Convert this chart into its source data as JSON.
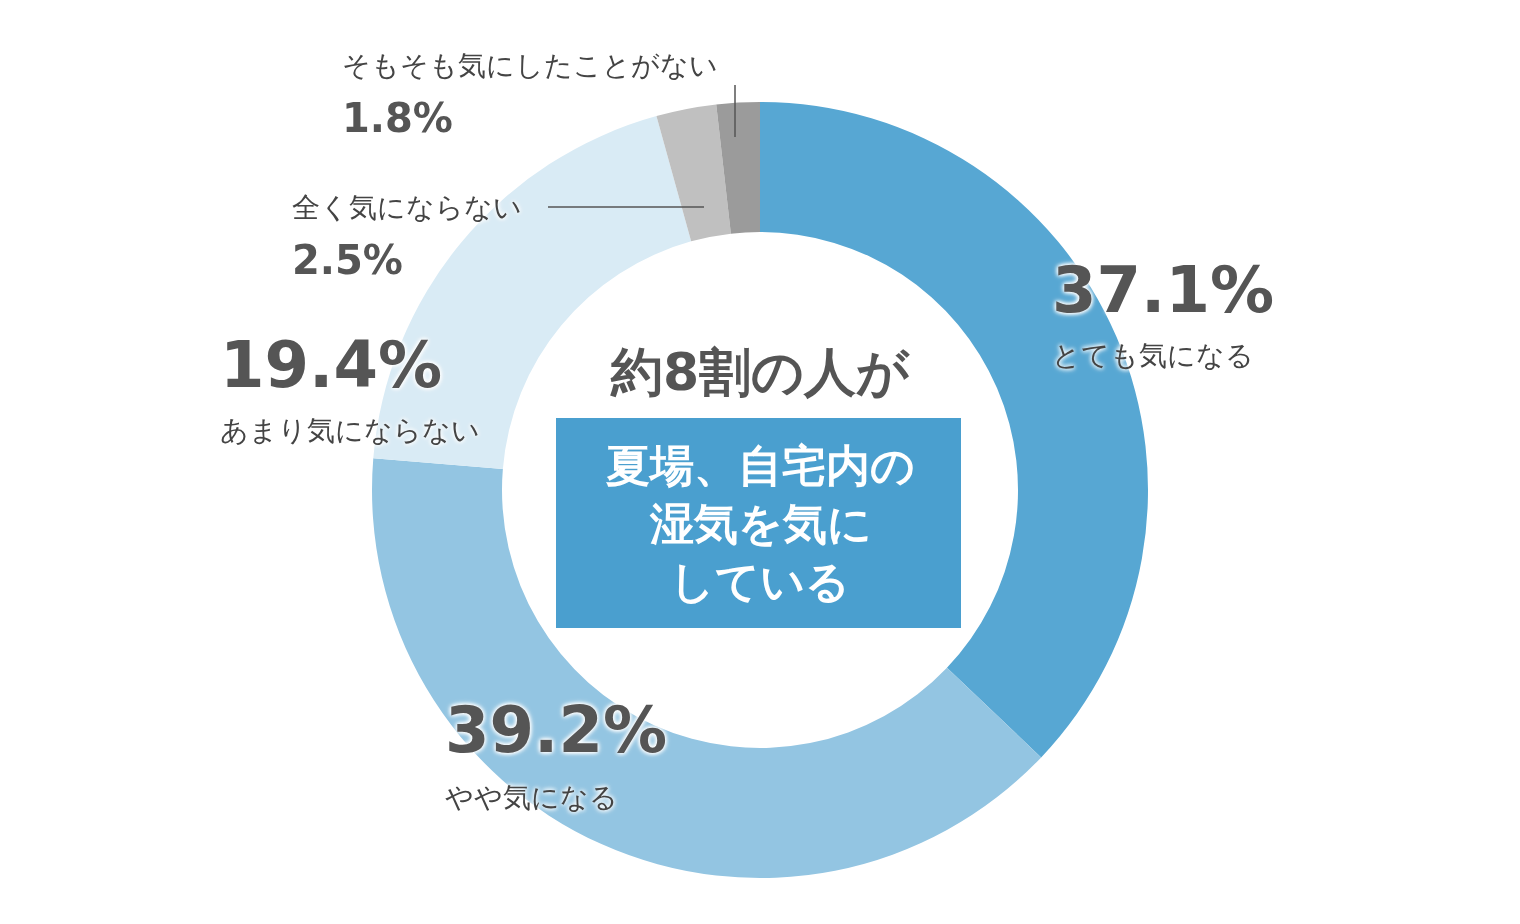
{
  "chart_data": {
    "type": "donut",
    "categories": [
      "とても気になる",
      "やや気になる",
      "あまり気にならない",
      "全く気にならない",
      "そもそも気にしたことがない"
    ],
    "values": [
      37.1,
      39.2,
      19.4,
      2.5,
      1.8
    ],
    "value_labels": [
      "37.1%",
      "39.2%",
      "19.4%",
      "2.5%",
      "1.8%"
    ],
    "colors": [
      "#57a7d3",
      "#93c5e2",
      "#d9ebf5",
      "#c0c0c0",
      "#9b9b9b"
    ],
    "legend": false,
    "annotations": [
      "約8割の人が",
      "夏場、自宅内の",
      "湿気を気に",
      "している"
    ]
  }
}
